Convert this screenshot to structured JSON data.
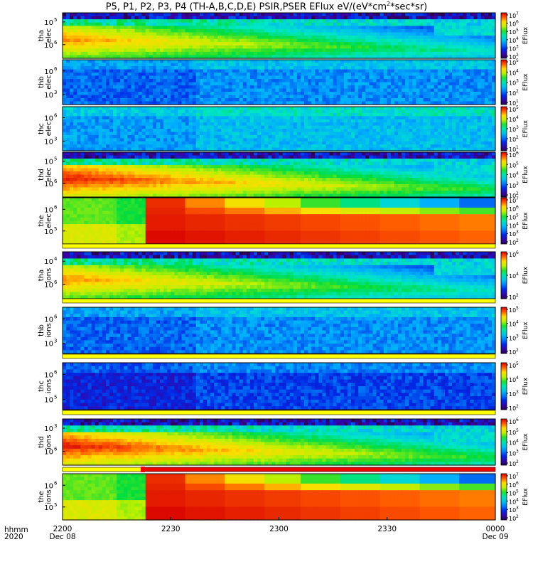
{
  "title": {
    "main": "P5, P1, P2, P3, P4 (TH-A,B,C,D,E) PSIR,PSER EFlux eV/(eV*cm",
    "sup": "2",
    "tail": "*sec*sr)"
  },
  "colors": {
    "background": "#ffffff",
    "axis": "#000000",
    "flag_yellow": "#ffff00",
    "flag_red": "#ee0000"
  },
  "time_axis": {
    "row_label_1": "hhmm",
    "row_label_2": "2020",
    "ticks": [
      {
        "label": "2200",
        "date": "Dec 08",
        "t": 0
      },
      {
        "label": "2230",
        "date": "",
        "t": 30
      },
      {
        "label": "2300",
        "date": "",
        "t": 60
      },
      {
        "label": "2330",
        "date": "",
        "t": 90
      },
      {
        "label": "0000",
        "date": "Dec 09",
        "t": 120
      }
    ],
    "start_time": "2020-12-08 22:00",
    "end_time": "2020-12-09 00:00"
  },
  "colorbar_label": "EFlux",
  "chart_data": [
    {
      "type": "heatmap",
      "probe": "tha",
      "species": "elec",
      "ylabel": [
        "tha",
        "elec"
      ],
      "y_ticks": [
        "10",
        "10"
      ],
      "y_tick_exp": [
        "5",
        "6"
      ],
      "cbar_exp": [
        "7",
        "6",
        "5",
        "4",
        "3",
        "2"
      ],
      "pattern": "plasmasheet",
      "level": "high",
      "flag": null
    },
    {
      "type": "heatmap",
      "probe": "thb",
      "species": "elec",
      "ylabel": [
        "thb",
        "elec"
      ],
      "y_ticks": [
        "10",
        "10"
      ],
      "y_tick_exp": [
        "3",
        "6"
      ],
      "cbar_exp": [
        "5",
        "4",
        "3",
        "2",
        "1"
      ],
      "pattern": "noise",
      "level": "low",
      "flag": null
    },
    {
      "type": "heatmap",
      "probe": "thc",
      "species": "elec",
      "ylabel": [
        "thc",
        "elec"
      ],
      "y_ticks": [
        "10",
        "10"
      ],
      "y_tick_exp": [
        "3",
        "6"
      ],
      "cbar_exp": [
        "5",
        "4",
        "3",
        "2",
        "1"
      ],
      "pattern": "noise",
      "level": "lowmid",
      "flag": null
    },
    {
      "type": "heatmap",
      "probe": "thd",
      "species": "elec",
      "ylabel": [
        "thd",
        "elec"
      ],
      "y_ticks": [
        "10",
        "10"
      ],
      "y_tick_exp": [
        "5",
        "6"
      ],
      "cbar_exp": [
        "6",
        "5",
        "4",
        "3",
        "2"
      ],
      "pattern": "plasmasheet",
      "level": "veryhigh",
      "flag": null
    },
    {
      "type": "heatmap",
      "probe": "the",
      "species": "elec",
      "ylabel": [
        "the",
        "elec"
      ],
      "y_ticks": [
        "10",
        "10"
      ],
      "y_tick_exp": [
        "5",
        "6"
      ],
      "cbar_exp": [
        "7",
        "6",
        "5",
        "4",
        "3",
        "2"
      ],
      "pattern": "blocks",
      "level": "high",
      "flag": "yellow"
    },
    {
      "type": "heatmap",
      "probe": "tha",
      "species": "ions",
      "ylabel": [
        "tha",
        "ions"
      ],
      "y_ticks": [
        "10",
        "10"
      ],
      "y_tick_exp": [
        "4",
        "6"
      ],
      "cbar_exp": [
        "6",
        "4",
        "2"
      ],
      "pattern": "plasmasheet",
      "level": "high",
      "flag": "yellow"
    },
    {
      "type": "heatmap",
      "probe": "thb",
      "species": "ions",
      "ylabel": [
        "thb",
        "ions"
      ],
      "y_ticks": [
        "10",
        "10"
      ],
      "y_tick_exp": [
        "3",
        "6"
      ],
      "cbar_exp": [
        "5",
        "4",
        "3",
        "2"
      ],
      "pattern": "noise",
      "level": "low",
      "flag": "yellow"
    },
    {
      "type": "heatmap",
      "probe": "thc",
      "species": "ions",
      "ylabel": [
        "thc",
        "ions"
      ],
      "y_ticks": [
        "10",
        "10"
      ],
      "y_tick_exp": [
        "5",
        "6"
      ],
      "cbar_exp": [
        "5",
        "4",
        "3",
        "2"
      ],
      "pattern": "noise",
      "level": "verylow",
      "flag": "yellow"
    },
    {
      "type": "heatmap",
      "probe": "thd",
      "species": "ions",
      "ylabel": [
        "thd",
        "ions"
      ],
      "y_ticks": [
        "10",
        "10"
      ],
      "y_tick_exp": [
        "3",
        "6"
      ],
      "cbar_exp": [
        "6",
        "5",
        "4",
        "3",
        "2"
      ],
      "pattern": "plasmasheet",
      "level": "veryhigh",
      "flag": "yellowred"
    },
    {
      "type": "heatmap",
      "probe": "the",
      "species": "ions",
      "ylabel": [
        "the",
        "ions"
      ],
      "y_ticks": [
        "10",
        "10"
      ],
      "y_tick_exp": [
        "5",
        "6"
      ],
      "cbar_exp": [
        "7",
        "6",
        "5",
        "4",
        "3",
        "2"
      ],
      "pattern": "blocks",
      "level": "high",
      "flag": null
    }
  ]
}
